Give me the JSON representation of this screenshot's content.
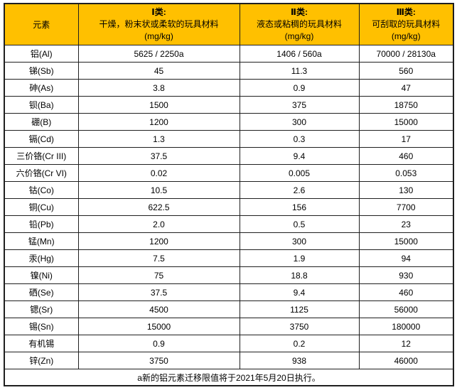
{
  "colors": {
    "header_bg": "#FFC000",
    "border": "#1F1F1F",
    "text": "#000000",
    "body_bg": "#FFFFFF"
  },
  "table": {
    "header": {
      "element_col": "元素",
      "class1": {
        "title": "Ⅰ类:",
        "desc": "干燥，粉末状或柔软的玩具材料",
        "unit": "(mg/kg)"
      },
      "class2": {
        "title": "Ⅱ类:",
        "desc": "液态或粘稠的玩具材料",
        "unit": "(mg/kg)"
      },
      "class3": {
        "title": "Ⅲ类:",
        "desc": "可刮取的玩具材料",
        "unit": "(mg/kg)"
      }
    },
    "rows": [
      {
        "element": "铝(Al)",
        "c1": "5625 / 2250a",
        "c2": "1406 / 560a",
        "c3": "70000 / 28130a"
      },
      {
        "element": "锑(Sb)",
        "c1": "45",
        "c2": "11.3",
        "c3": "560"
      },
      {
        "element": "砷(As)",
        "c1": "3.8",
        "c2": "0.9",
        "c3": "47"
      },
      {
        "element": "钡(Ba)",
        "c1": "1500",
        "c2": "375",
        "c3": "18750"
      },
      {
        "element": "硼(B)",
        "c1": "1200",
        "c2": "300",
        "c3": "15000"
      },
      {
        "element": "镉(Cd)",
        "c1": "1.3",
        "c2": "0.3",
        "c3": "17"
      },
      {
        "element": "三价铬(Cr III)",
        "c1": "37.5",
        "c2": "9.4",
        "c3": "460"
      },
      {
        "element": "六价铬(Cr VI)",
        "c1": "0.02",
        "c2": "0.005",
        "c3": "0.053"
      },
      {
        "element": "钴(Co)",
        "c1": "10.5",
        "c2": "2.6",
        "c3": "130"
      },
      {
        "element": "铜(Cu)",
        "c1": "622.5",
        "c2": "156",
        "c3": "7700"
      },
      {
        "element": "铅(Pb)",
        "c1": "2.0",
        "c2": "0.5",
        "c3": "23"
      },
      {
        "element": "锰(Mn)",
        "c1": "1200",
        "c2": "300",
        "c3": "15000"
      },
      {
        "element": "汞(Hg)",
        "c1": "7.5",
        "c2": "1.9",
        "c3": "94"
      },
      {
        "element": "镍(Ni)",
        "c1": "75",
        "c2": "18.8",
        "c3": "930"
      },
      {
        "element": "硒(Se)",
        "c1": "37.5",
        "c2": "9.4",
        "c3": "460"
      },
      {
        "element": "锶(Sr)",
        "c1": "4500",
        "c2": "1125",
        "c3": "56000"
      },
      {
        "element": "锡(Sn)",
        "c1": "15000",
        "c2": "3750",
        "c3": "180000"
      },
      {
        "element": "有机锡",
        "c1": "0.9",
        "c2": "0.2",
        "c3": "12"
      },
      {
        "element": "锌(Zn)",
        "c1": "3750",
        "c2": "938",
        "c3": "46000"
      }
    ],
    "footnote": "a新的铝元素迁移限值将于2021年5月20日执行。"
  },
  "chart_data": {
    "type": "table",
    "title": "玩具材料元素迁移限值",
    "columns": [
      "元素",
      "Ⅰ类: 干燥，粉末状或柔软的玩具材料 (mg/kg)",
      "Ⅱ类: 液态或粘稠的玩具材料 (mg/kg)",
      "Ⅲ类: 可刮取的玩具材料 (mg/kg)"
    ],
    "rows": [
      [
        "铝(Al)",
        "5625 / 2250a",
        "1406 / 560a",
        "70000 / 28130a"
      ],
      [
        "锑(Sb)",
        "45",
        "11.3",
        "560"
      ],
      [
        "砷(As)",
        "3.8",
        "0.9",
        "47"
      ],
      [
        "钡(Ba)",
        "1500",
        "375",
        "18750"
      ],
      [
        "硼(B)",
        "1200",
        "300",
        "15000"
      ],
      [
        "镉(Cd)",
        "1.3",
        "0.3",
        "17"
      ],
      [
        "三价铬(Cr III)",
        "37.5",
        "9.4",
        "460"
      ],
      [
        "六价铬(Cr VI)",
        "0.02",
        "0.005",
        "0.053"
      ],
      [
        "钴(Co)",
        "10.5",
        "2.6",
        "130"
      ],
      [
        "铜(Cu)",
        "622.5",
        "156",
        "7700"
      ],
      [
        "铅(Pb)",
        "2.0",
        "0.5",
        "23"
      ],
      [
        "锰(Mn)",
        "1200",
        "300",
        "15000"
      ],
      [
        "汞(Hg)",
        "7.5",
        "1.9",
        "94"
      ],
      [
        "镍(Ni)",
        "75",
        "18.8",
        "930"
      ],
      [
        "硒(Se)",
        "37.5",
        "9.4",
        "460"
      ],
      [
        "锶(Sr)",
        "4500",
        "1125",
        "56000"
      ],
      [
        "锡(Sn)",
        "15000",
        "3750",
        "180000"
      ],
      [
        "有机锡",
        "0.9",
        "0.2",
        "12"
      ],
      [
        "锌(Zn)",
        "3750",
        "938",
        "46000"
      ]
    ],
    "footnote": "a新的铝元素迁移限值将于2021年5月20日执行。"
  }
}
